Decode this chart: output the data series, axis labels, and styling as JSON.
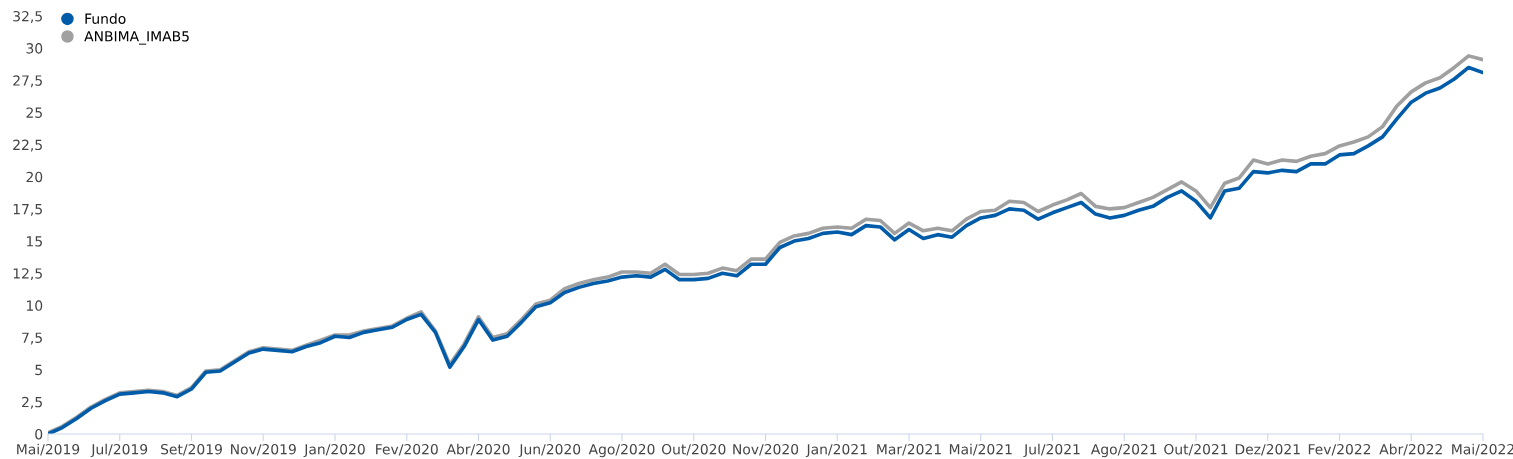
{
  "chart_data": {
    "type": "line",
    "categories": [
      "Mai/2019",
      null,
      null,
      null,
      null,
      "Jul/2019",
      null,
      null,
      null,
      null,
      "Set/2019",
      null,
      null,
      null,
      null,
      "Nov/2019",
      null,
      null,
      null,
      null,
      "Jan/2020",
      null,
      null,
      null,
      null,
      "Fev/2020",
      null,
      null,
      null,
      null,
      "Abr/2020",
      null,
      null,
      null,
      null,
      "Jun/2020",
      null,
      null,
      null,
      null,
      "Ago/2020",
      null,
      null,
      null,
      null,
      "Out/2020",
      null,
      null,
      null,
      null,
      "Nov/2020",
      null,
      null,
      null,
      null,
      "Jan/2021",
      null,
      null,
      null,
      null,
      "Mar/2021",
      null,
      null,
      null,
      null,
      "Mai/2021",
      null,
      null,
      null,
      null,
      "Jul/2021",
      null,
      null,
      null,
      null,
      "Ago/2021",
      null,
      null,
      null,
      null,
      "Out/2021",
      null,
      null,
      null,
      null,
      "Dez/2021",
      null,
      null,
      null,
      null,
      "Fev/2022",
      null,
      null,
      null,
      null,
      "Abr/2022",
      null,
      null,
      null,
      null,
      "Mai/2022"
    ],
    "series": [
      {
        "name": "Fundo",
        "color": "#005ca9",
        "values": [
          0.0,
          0.5,
          1.2,
          2.0,
          2.6,
          3.1,
          3.2,
          3.3,
          3.2,
          2.9,
          3.5,
          4.8,
          4.9,
          5.6,
          6.3,
          6.6,
          6.5,
          6.4,
          6.8,
          7.1,
          7.6,
          7.5,
          7.9,
          8.1,
          8.3,
          8.9,
          9.3,
          7.9,
          5.2,
          6.8,
          8.9,
          7.3,
          7.6,
          8.7,
          9.9,
          10.2,
          11.0,
          11.4,
          11.7,
          11.9,
          12.2,
          12.3,
          12.2,
          12.8,
          12.0,
          12.0,
          12.1,
          12.5,
          12.3,
          13.2,
          13.2,
          14.5,
          15.0,
          15.2,
          15.6,
          15.7,
          15.5,
          16.2,
          16.1,
          15.1,
          15.9,
          15.2,
          15.5,
          15.3,
          16.2,
          16.8,
          17.0,
          17.5,
          17.4,
          16.7,
          17.2,
          17.6,
          18.0,
          17.1,
          16.8,
          17.0,
          17.4,
          17.7,
          18.4,
          18.9,
          18.1,
          16.8,
          18.9,
          19.1,
          20.4,
          20.3,
          20.5,
          20.4,
          21.0,
          21.0,
          21.7,
          21.8,
          22.4,
          23.1,
          24.5,
          25.8,
          26.5,
          26.9,
          27.6,
          28.5,
          28.1
        ]
      },
      {
        "name": "ANBIMA_IMAB5",
        "color": "#a0a0a0",
        "values": [
          0.1,
          0.6,
          1.3,
          2.1,
          2.7,
          3.2,
          3.3,
          3.4,
          3.3,
          3.0,
          3.6,
          4.9,
          5.0,
          5.7,
          6.4,
          6.7,
          6.6,
          6.5,
          6.9,
          7.3,
          7.7,
          7.7,
          8.0,
          8.2,
          8.4,
          9.0,
          9.5,
          8.0,
          5.4,
          7.0,
          9.1,
          7.5,
          7.8,
          8.9,
          10.1,
          10.4,
          11.3,
          11.7,
          12.0,
          12.2,
          12.6,
          12.6,
          12.5,
          13.2,
          12.4,
          12.4,
          12.5,
          12.9,
          12.7,
          13.6,
          13.6,
          14.9,
          15.4,
          15.6,
          16.0,
          16.1,
          16.0,
          16.7,
          16.6,
          15.6,
          16.4,
          15.8,
          16.0,
          15.8,
          16.7,
          17.3,
          17.4,
          18.1,
          18.0,
          17.3,
          17.8,
          18.2,
          18.7,
          17.7,
          17.5,
          17.6,
          18.0,
          18.4,
          19.0,
          19.6,
          18.9,
          17.6,
          19.5,
          19.9,
          21.3,
          21.0,
          21.3,
          21.2,
          21.6,
          21.8,
          22.4,
          22.7,
          23.1,
          23.9,
          25.5,
          26.6,
          27.3,
          27.7,
          28.5,
          29.4,
          29.1
        ]
      }
    ],
    "ylim": [
      0,
      32.5
    ],
    "yticks": [
      0,
      {
        "value": 2.5,
        "label": "2,5"
      },
      5,
      {
        "value": 7.5,
        "label": "7,5"
      },
      10,
      {
        "value": 12.5,
        "label": "12,5"
      },
      15,
      {
        "value": 17.5,
        "label": "17,5"
      },
      20,
      {
        "value": 22.5,
        "label": "22,5"
      },
      25,
      {
        "value": 27.5,
        "label": "27,5"
      },
      30,
      {
        "value": 32.5,
        "label": "32,5"
      }
    ],
    "legend": "top left",
    "grid": false,
    "marker": "none",
    "line_style": "solid"
  }
}
